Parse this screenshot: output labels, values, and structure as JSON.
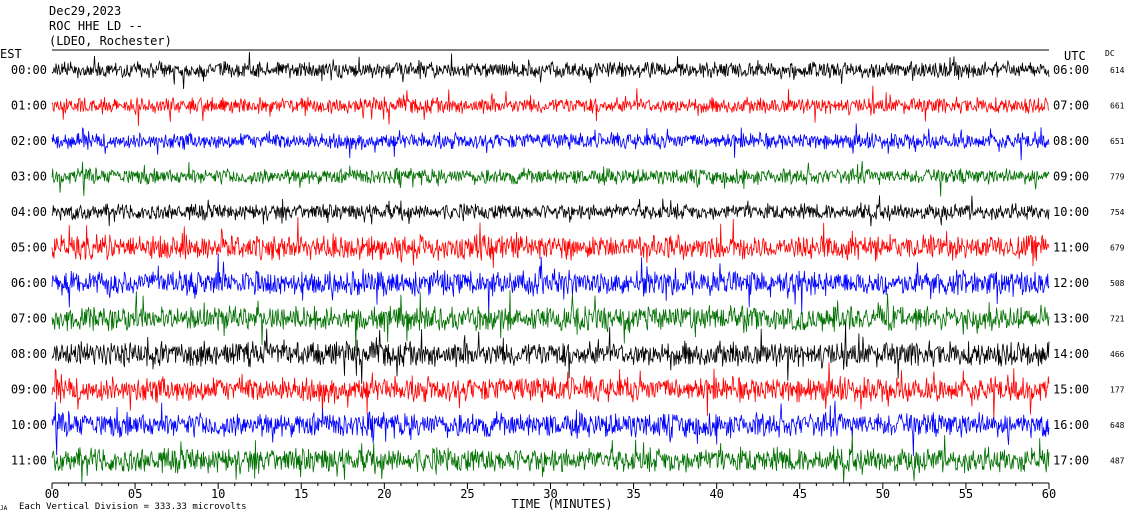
{
  "header": {
    "date": "Dec29,2023",
    "station": "ROC HHE LD --",
    "network": "(LDEO, Rochester)"
  },
  "chart_data": {
    "type": "line",
    "subtype": "helicorder",
    "left_axis_label": "EST",
    "right_axis_label": "UTC",
    "dc_label": "DC",
    "xlabel": "TIME (MINUTES)",
    "xlim": [
      0,
      60
    ],
    "x_ticks": [
      "00",
      "05",
      "10",
      "15",
      "20",
      "25",
      "30",
      "35",
      "40",
      "45",
      "50",
      "55",
      "60"
    ],
    "rows": [
      {
        "est": "00:00",
        "utc": "06:00",
        "dc": "614",
        "color": "#000000"
      },
      {
        "est": "01:00",
        "utc": "07:00",
        "dc": "661",
        "color": "#ff0000"
      },
      {
        "est": "02:00",
        "utc": "08:00",
        "dc": "651",
        "color": "#0000ff"
      },
      {
        "est": "03:00",
        "utc": "09:00",
        "dc": "779",
        "color": "#007000"
      },
      {
        "est": "04:00",
        "utc": "10:00",
        "dc": "754",
        "color": "#000000"
      },
      {
        "est": "05:00",
        "utc": "11:00",
        "dc": "679",
        "color": "#ff0000"
      },
      {
        "est": "06:00",
        "utc": "12:00",
        "dc": "508",
        "color": "#0000ff"
      },
      {
        "est": "07:00",
        "utc": "13:00",
        "dc": "721",
        "color": "#007000"
      },
      {
        "est": "08:00",
        "utc": "14:00",
        "dc": "466",
        "color": "#000000"
      },
      {
        "est": "09:00",
        "utc": "15:00",
        "dc": "177",
        "color": "#ff0000"
      },
      {
        "est": "10:00",
        "utc": "16:00",
        "dc": "648",
        "color": "#0000ff"
      },
      {
        "est": "11:00",
        "utc": "17:00",
        "dc": "487",
        "color": "#007000"
      }
    ],
    "footer_mark": "JA",
    "scale_note": "Each Vertical Division =  333.33 microvolts"
  }
}
